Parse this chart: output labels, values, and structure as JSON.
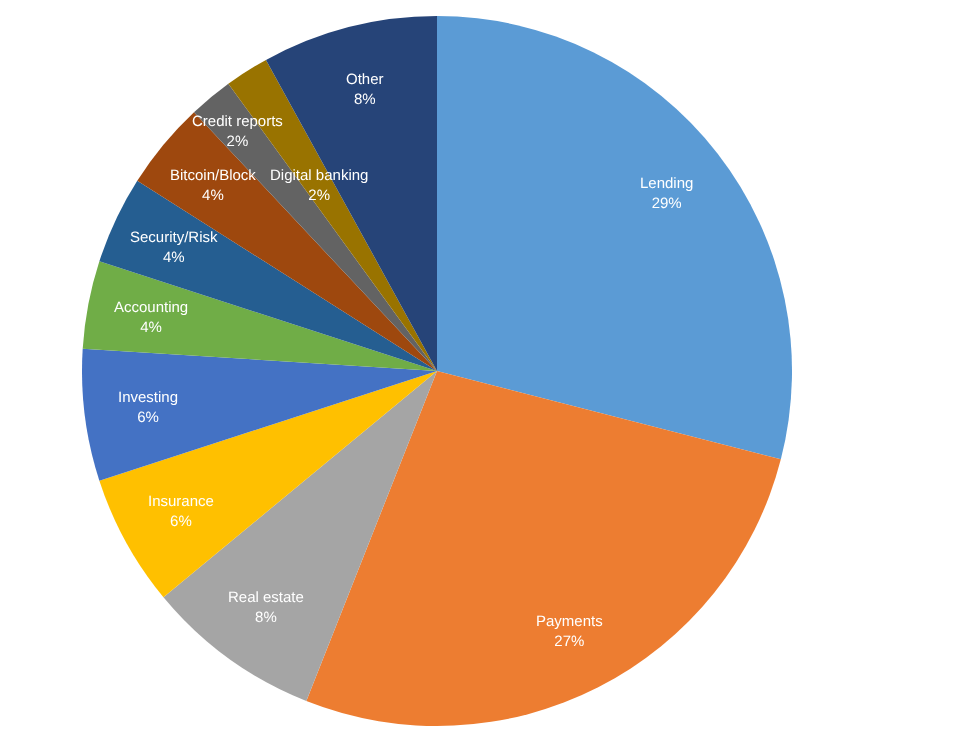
{
  "chart_data": {
    "type": "pie",
    "categories": [
      "Lending",
      "Payments",
      "Real estate",
      "Insurance",
      "Investing",
      "Accounting",
      "Security/Risk",
      "Bitcoin/Block",
      "Credit reports",
      "Digital banking",
      "Other"
    ],
    "values": [
      29,
      27,
      8,
      6,
      6,
      4,
      4,
      4,
      2,
      2,
      8
    ],
    "value_labels": [
      "29%",
      "27%",
      "8%",
      "6%",
      "6%",
      "4%",
      "4%",
      "4%",
      "2%",
      "2%",
      "8%"
    ],
    "colors": [
      "#5b9bd5",
      "#ed7d31",
      "#a5a5a5",
      "#ffc000",
      "#4472c4",
      "#70ad47",
      "#255e91",
      "#9e480e",
      "#636363",
      "#997300",
      "#264478"
    ],
    "legend": false
  }
}
